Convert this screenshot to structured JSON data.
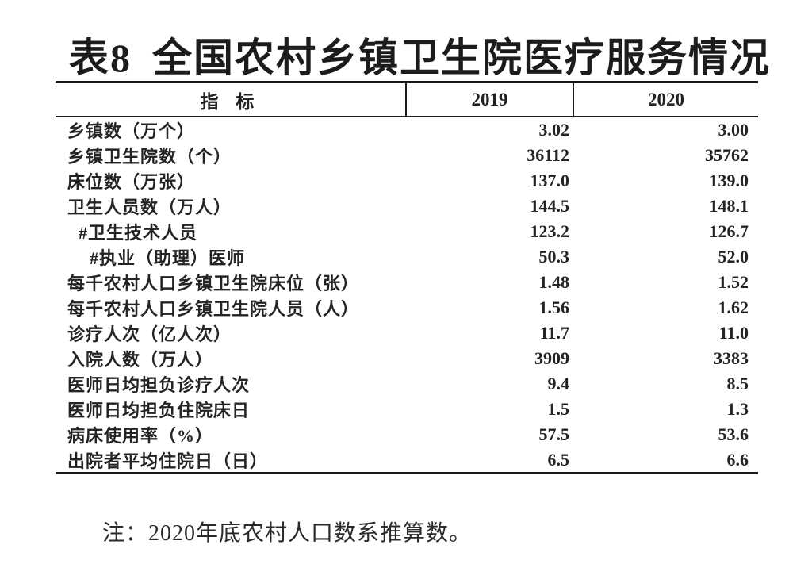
{
  "page": {
    "title_prefix": "表8",
    "title_main": "全国农村乡镇卫生院医疗服务情况",
    "note": "注：2020年底农村人口数系推算数。"
  },
  "table": {
    "columns": [
      "指 标",
      "2019",
      "2020"
    ],
    "rows": [
      {
        "label": "乡镇数（万个）",
        "indent": 0,
        "y2019": "3.02",
        "y2020": "3.00"
      },
      {
        "label": "乡镇卫生院数（个）",
        "indent": 0,
        "y2019": "36112",
        "y2020": "35762"
      },
      {
        "label": "床位数（万张）",
        "indent": 0,
        "y2019": "137.0",
        "y2020": "139.0"
      },
      {
        "label": "卫生人员数（万人）",
        "indent": 0,
        "y2019": "144.5",
        "y2020": "148.1"
      },
      {
        "label": "#卫生技术人员",
        "indent": 1,
        "y2019": "123.2",
        "y2020": "126.7"
      },
      {
        "label": "#执业（助理）医师",
        "indent": 2,
        "y2019": "50.3",
        "y2020": "52.0"
      },
      {
        "label": "每千农村人口乡镇卫生院床位（张）",
        "indent": 0,
        "y2019": "1.48",
        "y2020": "1.52"
      },
      {
        "label": "每千农村人口乡镇卫生院人员（人）",
        "indent": 0,
        "y2019": "1.56",
        "y2020": "1.62"
      },
      {
        "label": "诊疗人次（亿人次）",
        "indent": 0,
        "y2019": "11.7",
        "y2020": "11.0"
      },
      {
        "label": "入院人数（万人）",
        "indent": 0,
        "y2019": "3909",
        "y2020": "3383"
      },
      {
        "label": "医师日均担负诊疗人次",
        "indent": 0,
        "y2019": "9.4",
        "y2020": "8.5"
      },
      {
        "label": "医师日均担负住院床日",
        "indent": 0,
        "y2019": "1.5",
        "y2020": "1.3"
      },
      {
        "label": "病床使用率（%）",
        "indent": 0,
        "y2019": "57.5",
        "y2020": "53.6"
      },
      {
        "label": "出院者平均住院日（日）",
        "indent": 0,
        "y2019": "6.5",
        "y2020": "6.6"
      }
    ]
  }
}
